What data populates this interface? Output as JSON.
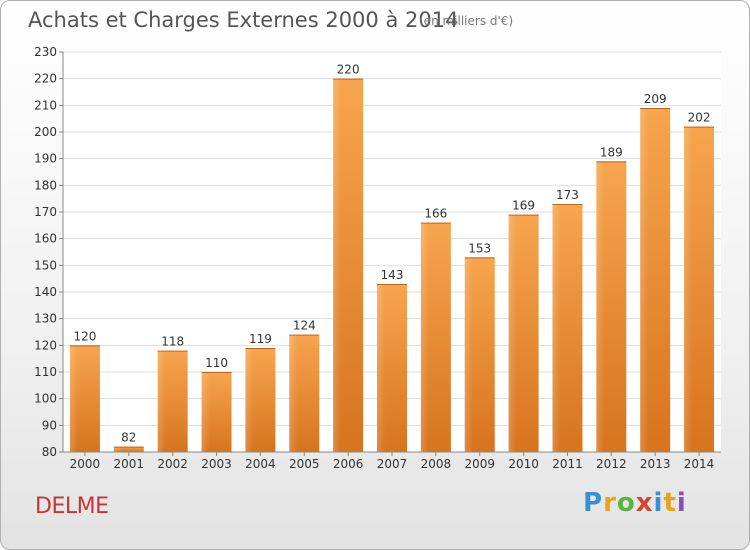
{
  "title": "Achats et Charges Externes 2000 à 2014",
  "subtitle": "(en milliers d'€)",
  "commune": "DELME",
  "logo": {
    "text": "Proxiti",
    "letters": [
      "P",
      "r",
      "o",
      "x",
      "i",
      "t",
      "i"
    ],
    "colors": [
      "#3a8fd0",
      "#e8a21c",
      "#59b63c",
      "#d8432e",
      "#3a8fd0",
      "#e8a21c",
      "#8a4fb0"
    ]
  },
  "chart_data": {
    "type": "bar",
    "categories": [
      "2000",
      "2001",
      "2002",
      "2003",
      "2004",
      "2005",
      "2006",
      "2007",
      "2008",
      "2009",
      "2010",
      "2011",
      "2012",
      "2013",
      "2014"
    ],
    "values": [
      120,
      82,
      118,
      110,
      119,
      124,
      220,
      143,
      166,
      153,
      169,
      173,
      189,
      209,
      202
    ],
    "ylim": [
      80,
      230
    ],
    "yticks": [
      80,
      90,
      100,
      110,
      120,
      130,
      140,
      150,
      160,
      170,
      180,
      190,
      200,
      210,
      220,
      230
    ],
    "grid": true,
    "bar_color": "#f0913a"
  }
}
